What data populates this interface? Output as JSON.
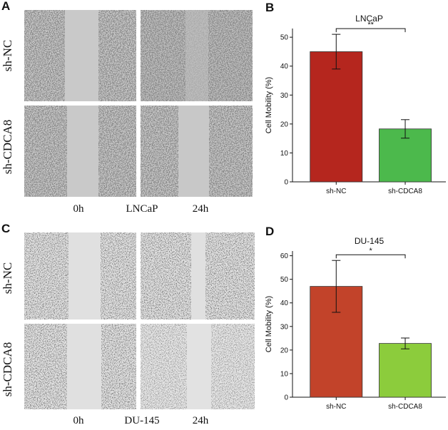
{
  "panels": {
    "a": {
      "label": "A",
      "row_labels": [
        "sh-NC",
        "sh-CDCA8"
      ],
      "captions": [
        "0h",
        "LNCaP",
        "24h"
      ]
    },
    "c": {
      "label": "C",
      "row_labels": [
        "sh-NC",
        "sh-CDCA8"
      ],
      "captions": [
        "0h",
        "DU-145",
        "24h"
      ]
    }
  },
  "colors": {
    "sh_nc_b": "#b5261e",
    "sh_cdca8_b": "#4cb94c",
    "sh_nc_d": "#c2432a",
    "sh_cdca8_d": "#8ccc3c"
  },
  "chart_data": [
    {
      "panel_label": "B",
      "type": "bar",
      "title": "LNCaP",
      "xlabel": "",
      "ylabel": "Cell Mobility (%)",
      "categories": [
        "sh-NC",
        "sh-CDCA8"
      ],
      "values": [
        45,
        18.3
      ],
      "errors": [
        6,
        3.2
      ],
      "ylim": [
        0,
        53
      ],
      "yticks": [
        0,
        10,
        20,
        30,
        40,
        50
      ],
      "significance": "**",
      "grid": false
    },
    {
      "panel_label": "D",
      "type": "bar",
      "title": "DU-145",
      "xlabel": "",
      "ylabel": "Cell Mobility (%)",
      "categories": [
        "sh-NC",
        "sh-CDCA8"
      ],
      "values": [
        47,
        22.8
      ],
      "errors": [
        11,
        2.3
      ],
      "ylim": [
        0,
        62
      ],
      "yticks": [
        0,
        10,
        20,
        30,
        40,
        50,
        60
      ],
      "significance": "*",
      "grid": false
    }
  ]
}
